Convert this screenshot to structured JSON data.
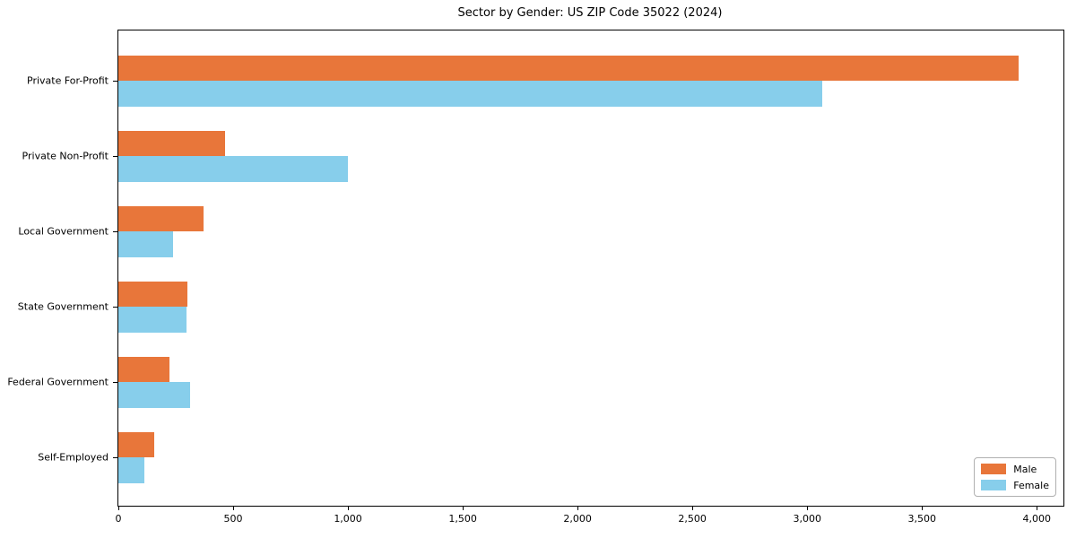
{
  "chart_data": {
    "type": "bar",
    "orientation": "horizontal",
    "title": "Sector by Gender: US ZIP Code 35022 (2024)",
    "categories": [
      "Private For-Profit",
      "Private Non-Profit",
      "Local Government",
      "State Government",
      "Federal Government",
      "Self-Employed"
    ],
    "series": [
      {
        "name": "Male",
        "color": "#e8763a",
        "values": [
          3920,
          465,
          370,
          300,
          222,
          155
        ]
      },
      {
        "name": "Female",
        "color": "#87ceeb",
        "values": [
          3065,
          1000,
          240,
          295,
          314,
          115
        ]
      }
    ],
    "xlabel": "",
    "ylabel": "",
    "xlim": [
      0,
      4116
    ],
    "x_ticks": [
      {
        "value": 0,
        "label": "0"
      },
      {
        "value": 500,
        "label": "500"
      },
      {
        "value": 1000,
        "label": "1,000"
      },
      {
        "value": 1500,
        "label": "1,500"
      },
      {
        "value": 2000,
        "label": "2,000"
      },
      {
        "value": 2500,
        "label": "2,500"
      },
      {
        "value": 3000,
        "label": "3,000"
      },
      {
        "value": 3500,
        "label": "3,500"
      },
      {
        "value": 4000,
        "label": "4,000"
      }
    ],
    "grid": false,
    "legend": {
      "position": "lower right",
      "entries": [
        "Male",
        "Female"
      ]
    }
  }
}
